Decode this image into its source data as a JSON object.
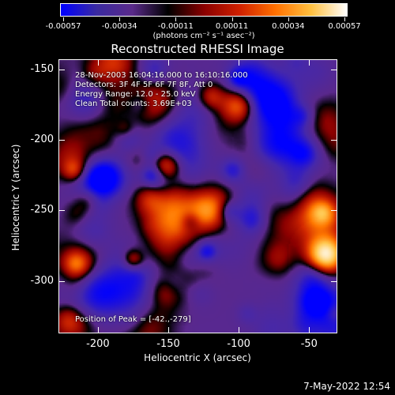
{
  "colorbar": {
    "gradient_colors": [
      "#0000ff",
      "#3a2aa0",
      "#5a2a8a",
      "#000000",
      "#8a0000",
      "#d02000",
      "#ff7000",
      "#ffc040",
      "#ffffff"
    ],
    "tick_labels": [
      "-0.00057",
      "-0.00034",
      "-0.00011",
      "0.00011",
      "0.00034",
      "0.00057"
    ],
    "units": "(photons cm⁻² s⁻¹ asec⁻²)"
  },
  "title": "Reconstructed RHESSI Image",
  "info": {
    "time": "28-Nov-2003 16:04:16.000 to 16:10:16.000",
    "detectors": "Detectors: 3F 4F 5F 6F 7F 8F, Att 0",
    "energy": "Energy Range: 12.0 - 25.0 keV",
    "method": "Clean     Total counts: 3.69E+03",
    "peak": "Position of Peak = [-42.,-279]"
  },
  "axes": {
    "xlabel": "Heliocentric X (arcsec)",
    "ylabel": "Heliocentric Y (arcsec)",
    "xlim": [
      -228,
      -30
    ],
    "ylim": [
      -337,
      -143
    ],
    "xticks": [
      "-200",
      "-150",
      "-100",
      "-50"
    ],
    "yticks": [
      "-150",
      "-200",
      "-250",
      "-300"
    ]
  },
  "timestamp": "7-May-2022 12:54"
}
